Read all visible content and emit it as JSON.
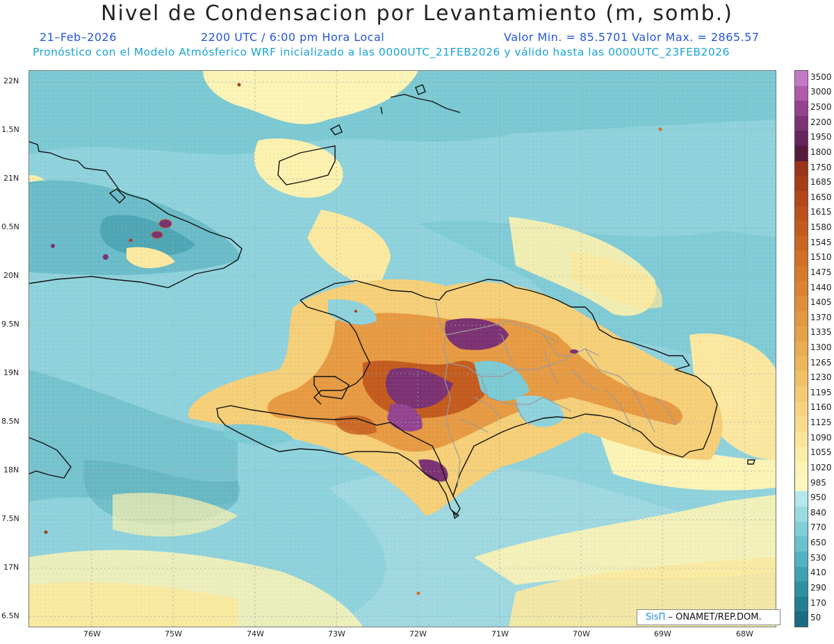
{
  "header": {
    "title": "Nivel de Condensacion por Levantamiento (m, somb.)",
    "date": "21–Feb–2026",
    "time": "2200 UTC / 6:00 pm Hora Local",
    "range": "Valor Min. = 85.5701   Valor Max. = 2865.57",
    "forecast_line": "Pronóstico con el Modelo Atmósferico WRF inicializado a las 0000UTC_21FEB2026 y válido hasta las  0000UTC_23FEB2026"
  },
  "map": {
    "lat_labels": [
      "22N",
      "1.5N",
      "21N",
      "0.5N",
      "20N",
      "9.5N",
      "19N",
      "8.5N",
      "18N",
      "7.5N",
      "17N",
      "6.5N"
    ],
    "lon_labels": [
      "76W",
      "75W",
      "74W",
      "73W",
      "72W",
      "71W",
      "70W",
      "69W",
      "68W"
    ],
    "colors": {
      "ocean_low": "#9ad6e0",
      "ocean_mid": "#6fc3cf",
      "land_high": "#d88a2a",
      "peak": "#7a2a70",
      "coast": "#111111",
      "border": "#9a9a9a"
    }
  },
  "colorbar": {
    "labels": [
      "3500",
      "3000",
      "2500",
      "2200",
      "1950",
      "1800",
      "1750",
      "1685",
      "1650",
      "1615",
      "1580",
      "1545",
      "1510",
      "1475",
      "1440",
      "1405",
      "1370",
      "1335",
      "1300",
      "1265",
      "1230",
      "1195",
      "1160",
      "1125",
      "1090",
      "1055",
      "1020",
      "985",
      "950",
      "840",
      "770",
      "650",
      "530",
      "410",
      "290",
      "170",
      "50"
    ],
    "colors": [
      "#c478c8",
      "#b05aa8",
      "#94438f",
      "#7c3273",
      "#66245c",
      "#561a3c",
      "#9a3418",
      "#a63d18",
      "#b3471a",
      "#bc511c",
      "#c45b1e",
      "#cb6621",
      "#d17026",
      "#d67a2b",
      "#da8431",
      "#de8e38",
      "#e2983f",
      "#e6a247",
      "#eaac50",
      "#eeb65a",
      "#f1c066",
      "#f4ca72",
      "#f6d37f",
      "#f8dc8c",
      "#fae59a",
      "#fbeda8",
      "#fcf3b5",
      "#fcf6bf",
      "#b4e8ec",
      "#9adbe2",
      "#80cfd8",
      "#68c1cc",
      "#52b2c0",
      "#3fa2b2",
      "#2f90a2",
      "#237e92",
      "#196c82"
    ]
  },
  "credit": {
    "logo": "SisΠ",
    "text": " –  ONAMET/REP.DOM."
  }
}
